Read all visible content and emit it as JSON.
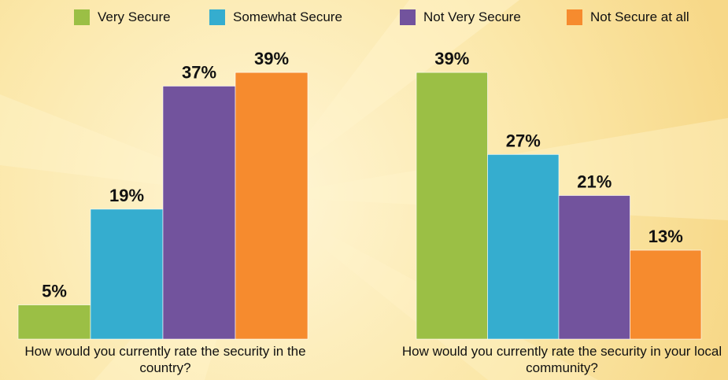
{
  "legend": [
    {
      "label": "Very Secure",
      "color": "#9bbf45"
    },
    {
      "label": "Somewhat Secure",
      "color": "#35adcf"
    },
    {
      "label": "Not Very Secure",
      "color": "#72539d"
    },
    {
      "label": "Not Secure at all",
      "color": "#f68b2e"
    }
  ],
  "chart_data": [
    {
      "type": "bar",
      "categories": [
        "Very Secure",
        "Somewhat Secure",
        "Not Very Secure",
        "Not Secure at all"
      ],
      "values": [
        5,
        19,
        37,
        39
      ],
      "data_labels": [
        "5%",
        "19%",
        "37%",
        "39%"
      ],
      "colors": [
        "#9bbf45",
        "#35adcf",
        "#72539d",
        "#f68b2e"
      ],
      "title": "",
      "xlabel": "How would you currently rate the security in the country?",
      "ylabel": "",
      "legend": "top",
      "grid": false
    },
    {
      "type": "bar",
      "categories": [
        "Very Secure",
        "Somewhat Secure",
        "Not Very Secure",
        "Not Secure at all"
      ],
      "values": [
        39,
        27,
        21,
        13
      ],
      "data_labels": [
        "39%",
        "27%",
        "21%",
        "13%"
      ],
      "colors": [
        "#9bbf45",
        "#35adcf",
        "#72539d",
        "#f68b2e"
      ],
      "title": "",
      "xlabel": "How would you currently rate the security in your local community?",
      "ylabel": "",
      "legend": "top",
      "grid": false
    }
  ]
}
